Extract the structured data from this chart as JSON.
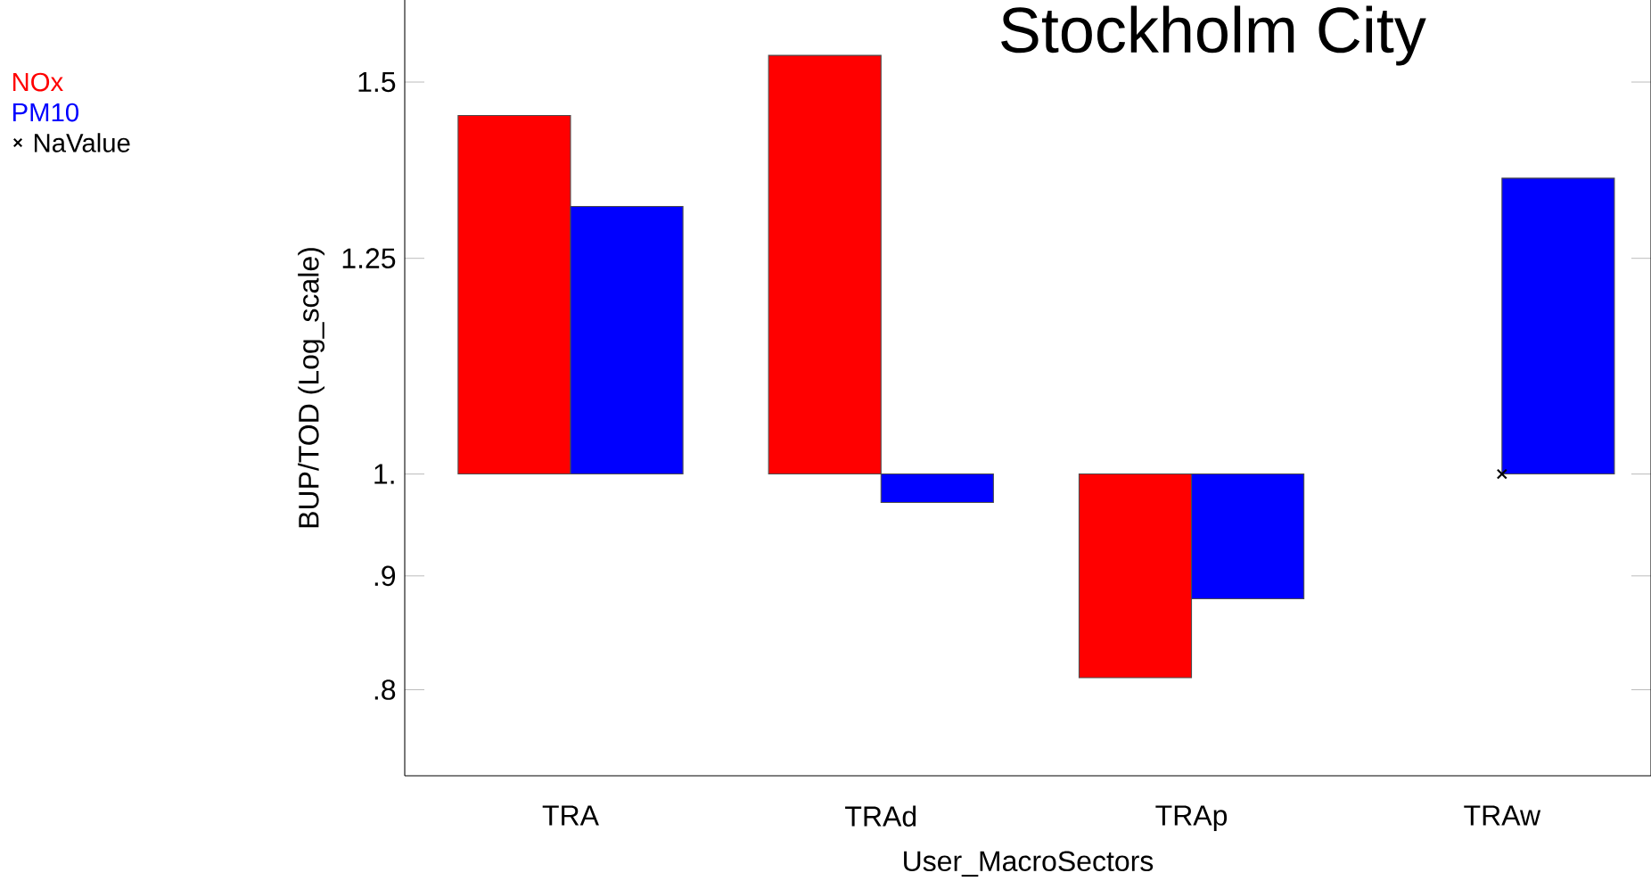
{
  "chart_data": {
    "type": "bar",
    "title": "Stockholm City",
    "xlabel": "User_MacroSectors",
    "ylabel": "BUP/TOD   (Log_scale)",
    "categories": [
      "TRA",
      "TRAd",
      "TRAp",
      "TRAw"
    ],
    "series": [
      {
        "name": "NOx",
        "color": "#ff0000",
        "values": [
          0.449,
          0.542,
          -0.19,
          null
        ],
        "base": [
          1,
          1,
          1,
          null
        ]
      },
      {
        "name": "PM10",
        "color": "#0000ff",
        "values": [
          0.319,
          -0.029,
          -0.121,
          0.358
        ],
        "base": [
          1,
          1,
          1,
          1
        ]
      },
      {
        "name": "NaValue",
        "type": "scatter",
        "marker": "cross",
        "color": "#000000",
        "values": [
          null,
          null,
          null,
          1
        ]
      }
    ],
    "log": "y",
    "ylim": [
      0.732,
      1.633
    ],
    "yticks": [
      {
        "value": 0.8,
        "label": ".8"
      },
      {
        "value": 0.9,
        "label": ".9"
      },
      {
        "value": 1,
        "label": "1."
      },
      {
        "value": 1.25,
        "label": "1.25"
      },
      {
        "value": 1.5,
        "label": "1.5"
      }
    ],
    "legend": "top left"
  }
}
